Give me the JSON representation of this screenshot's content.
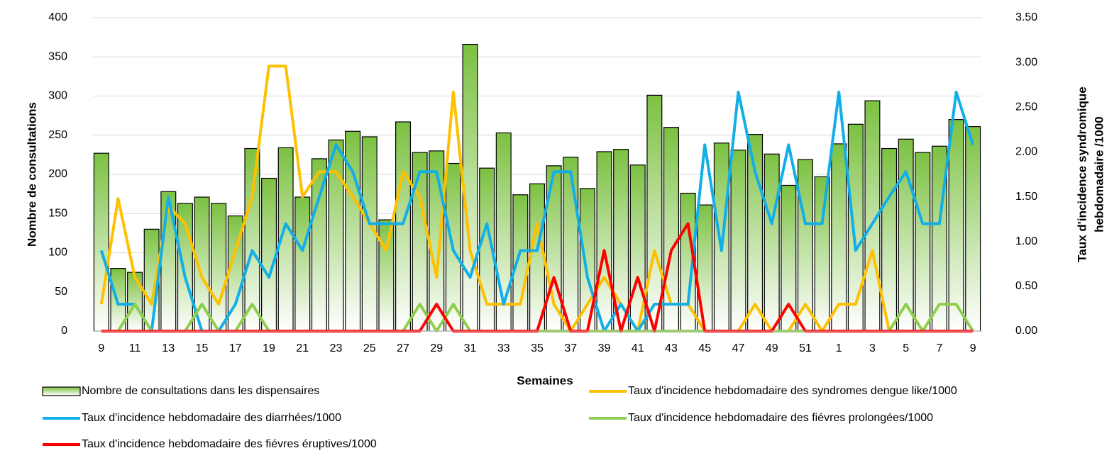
{
  "chart_data": {
    "type": "combo",
    "x_label": "Semaines",
    "y_label": "Nombre de consultations",
    "y2_label": [
      "Taux d'incidence syndromique",
      "hebdomadaire /1000"
    ],
    "categories": [
      "9",
      null,
      "11",
      null,
      "13",
      null,
      "15",
      null,
      "17",
      null,
      "19",
      null,
      "21",
      null,
      "23",
      null,
      "25",
      null,
      "27",
      null,
      "29",
      null,
      "31",
      null,
      "33",
      null,
      "35",
      null,
      "37",
      null,
      "39",
      null,
      "41",
      null,
      "43",
      null,
      "45",
      null,
      "47",
      null,
      "49",
      null,
      "51",
      null,
      "1",
      null,
      "3",
      null,
      "5",
      null,
      "7",
      null,
      "9"
    ],
    "ylim": [
      0,
      400
    ],
    "yticks": [
      0,
      50,
      100,
      150,
      200,
      250,
      300,
      350,
      400
    ],
    "y2lim": [
      0,
      3.5
    ],
    "y2ticks": [
      {
        "value": 0,
        "label": "0.00"
      },
      {
        "value": 0.5,
        "label": "0.50"
      },
      {
        "value": 1,
        "label": "1.00"
      },
      {
        "value": 1.5,
        "label": "1.50"
      },
      {
        "value": 2,
        "label": "2.00"
      },
      {
        "value": 2.5,
        "label": "2.50"
      },
      {
        "value": 3,
        "label": "3.00"
      },
      {
        "value": 3.5,
        "label": "3.50"
      }
    ],
    "grid": true,
    "legend": "bottom",
    "series": [
      {
        "name": "Nombre de consultations dans les dispensaires",
        "type": "bar",
        "color": "#7cc142",
        "values": [
          227,
          80,
          75,
          130,
          178,
          163,
          171,
          163,
          147,
          233,
          195,
          234,
          171,
          220,
          244,
          255,
          248,
          142,
          267,
          228,
          230,
          214,
          366,
          208,
          253,
          174,
          188,
          211,
          222,
          182,
          229,
          232,
          212,
          301,
          260,
          176,
          161,
          240,
          231,
          251,
          226,
          186,
          219,
          197,
          239,
          264,
          294,
          233,
          245,
          228,
          236,
          270,
          261
        ]
      },
      {
        "name": "Taux d'incidence hebdomadaire des syndromes dengue like/1000",
        "type": "line",
        "axis": "y2",
        "color": "#ffc000",
        "values": [
          0.3,
          1.48,
          0.6,
          0.3,
          1.4,
          1.2,
          0.6,
          0.3,
          0.9,
          1.5,
          2.96,
          2.96,
          1.5,
          1.78,
          1.78,
          1.5,
          1.2,
          0.9,
          1.78,
          1.5,
          0.6,
          2.67,
          0.9,
          0.3,
          0.3,
          0.3,
          1.2,
          0.3,
          0,
          0.3,
          0.6,
          0.3,
          0,
          0.9,
          0.3,
          0.3,
          0,
          0,
          0,
          0.3,
          0,
          0,
          0.3,
          0,
          0.3,
          0.3,
          0.9,
          0,
          0,
          0,
          0,
          0,
          0
        ]
      },
      {
        "name": "Taux d'incidence hebdomadaire des diarrhées/1000",
        "type": "line",
        "axis": "y2",
        "color": "#12aee8",
        "values": [
          0.9,
          0.3,
          0.3,
          0,
          1.5,
          0.6,
          0,
          0,
          0.3,
          0.9,
          0.6,
          1.2,
          0.9,
          1.5,
          2.08,
          1.78,
          1.2,
          1.2,
          1.2,
          1.78,
          1.78,
          0.9,
          0.6,
          1.2,
          0.3,
          0.9,
          0.9,
          1.78,
          1.78,
          0.6,
          0,
          0.3,
          0,
          0.3,
          0.3,
          0.3,
          2.08,
          0.9,
          2.67,
          1.78,
          1.2,
          2.08,
          1.2,
          1.2,
          2.67,
          0.9,
          1.2,
          1.5,
          1.78,
          1.2,
          1.2,
          2.67,
          2.08
        ]
      },
      {
        "name": "Taux d'incidence hebdomadaire des fiévres prolongées/1000",
        "type": "line",
        "axis": "y2",
        "color": "#8dcf4a",
        "values": [
          0,
          0,
          0.3,
          0,
          0,
          0,
          0.3,
          0,
          0,
          0.3,
          0,
          0,
          0,
          0,
          0,
          0,
          0,
          0,
          0,
          0.3,
          0,
          0.3,
          0,
          0,
          0,
          0,
          0,
          0,
          0,
          0,
          0,
          0,
          0,
          0,
          0,
          0,
          0,
          0,
          0,
          0,
          0,
          0,
          0,
          0,
          0,
          0,
          0,
          0,
          0.3,
          0,
          0.3,
          0.3,
          0
        ]
      },
      {
        "name": "Taux d'incidence hebdomadaire des fiévres éruptives/1000",
        "type": "line",
        "axis": "y2",
        "color": "#ff0000",
        "values": [
          0,
          0,
          0,
          0,
          0,
          0,
          0,
          0,
          0,
          0,
          0,
          0,
          0,
          0,
          0,
          0,
          0,
          0,
          0,
          0,
          0.3,
          0,
          0,
          0,
          0,
          0,
          0,
          0.6,
          0,
          0,
          0.9,
          0,
          0.6,
          0,
          0.9,
          1.2,
          0,
          0,
          0,
          0,
          0,
          0.3,
          0,
          0,
          0,
          0,
          0,
          0,
          0,
          0,
          0,
          0,
          0
        ]
      }
    ]
  }
}
